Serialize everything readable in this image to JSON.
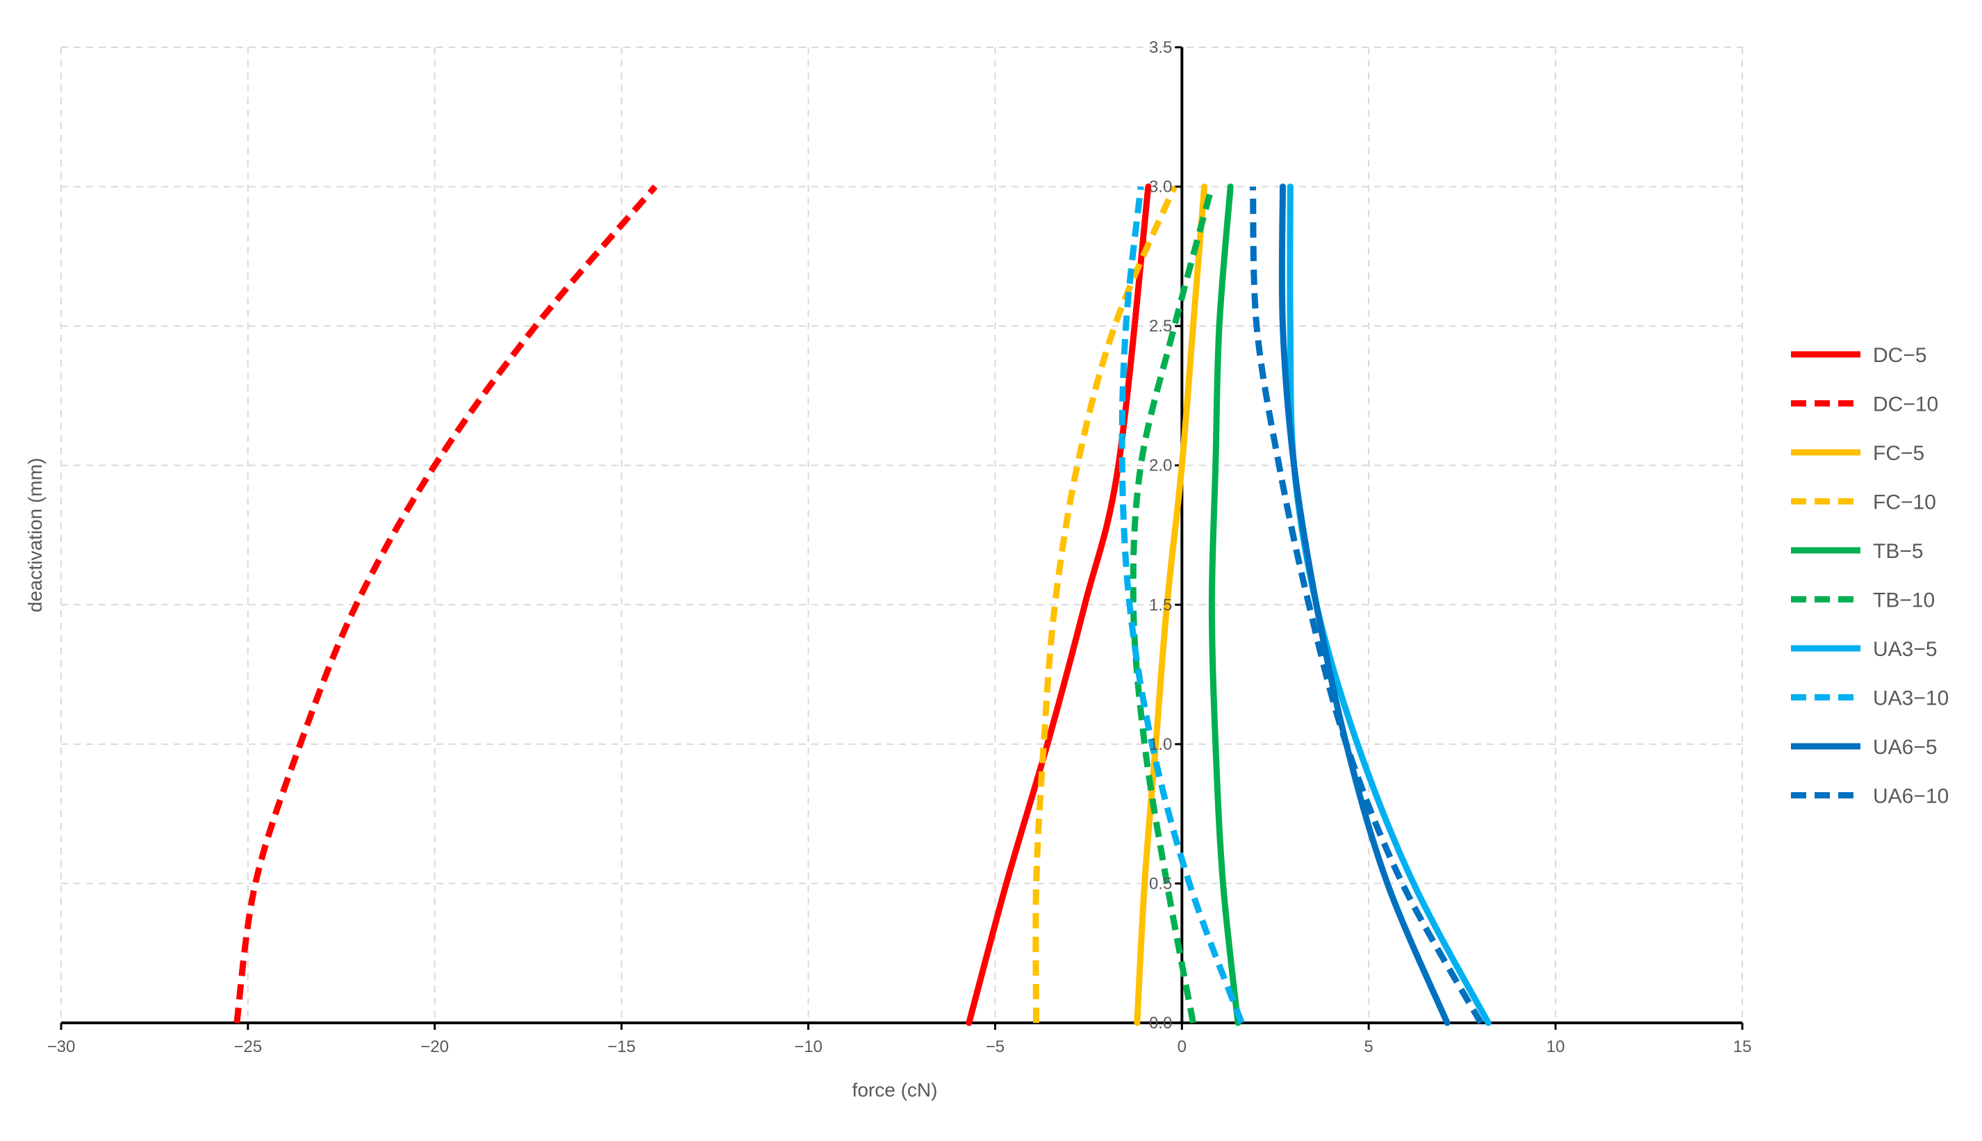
{
  "chart_data": {
    "type": "line",
    "xlabel": "force (cN)",
    "ylabel": "deactivation (mm)",
    "xlim": [
      -30,
      15
    ],
    "ylim": [
      0,
      3.5
    ],
    "x_ticks": [
      -30,
      -25,
      -20,
      -15,
      -10,
      -5,
      0,
      5,
      10,
      15
    ],
    "x_tick_labels": [
      "−30",
      "−25",
      "−20",
      "−15",
      "−10",
      "−5",
      "0",
      "5",
      "10",
      "15"
    ],
    "y_ticks": [
      0,
      0.5,
      1,
      1.5,
      2,
      2.5,
      3,
      3.5
    ],
    "y_tick_labels": [
      "0.0",
      "0.5",
      "1.0",
      "1.5",
      "2.0",
      "2.5",
      "3.0",
      "3.5"
    ],
    "grid": true,
    "legend_position": "right",
    "series": [
      {
        "name": "DC−5",
        "color": "#ff0000",
        "style": "solid",
        "x": [
          -5.7,
          -4.7,
          -3.6,
          -2.6,
          -1.7,
          -0.9
        ],
        "y": [
          0,
          0.5,
          1.0,
          1.5,
          2.0,
          3.0
        ]
      },
      {
        "name": "DC−10",
        "color": "#ff0000",
        "style": "dashed",
        "x": [
          -25.3,
          -24.8,
          -23.6,
          -22.1,
          -20.0,
          -17.3,
          -14.1
        ],
        "y": [
          0,
          0.5,
          1.0,
          1.5,
          2.0,
          2.5,
          3.0
        ]
      },
      {
        "name": "FC−5",
        "color": "#ffc000",
        "style": "solid",
        "x": [
          -1.2,
          -1.0,
          -0.7,
          -0.4,
          0.0,
          0.3,
          0.6
        ],
        "y": [
          0,
          0.5,
          1.0,
          1.5,
          2.0,
          2.5,
          3.0
        ]
      },
      {
        "name": "FC−10",
        "color": "#ffc000",
        "style": "dashed",
        "x": [
          -3.9,
          -3.9,
          -3.7,
          -3.4,
          -2.8,
          -1.8,
          -0.2
        ],
        "y": [
          0,
          0.5,
          1.0,
          1.5,
          2.0,
          2.5,
          3.0
        ]
      },
      {
        "name": "TB−5",
        "color": "#00b050",
        "style": "solid",
        "x": [
          1.5,
          1.1,
          0.9,
          0.8,
          0.9,
          1.0,
          1.3
        ],
        "y": [
          0,
          0.5,
          1.0,
          1.5,
          2.0,
          2.5,
          3.0
        ]
      },
      {
        "name": "TB−10",
        "color": "#00b050",
        "style": "dashed",
        "x": [
          0.3,
          -0.4,
          -1.0,
          -1.3,
          -1.1,
          -0.2,
          0.8
        ],
        "y": [
          0,
          0.5,
          1.0,
          1.5,
          2.0,
          2.5,
          3.0
        ]
      },
      {
        "name": "UA3−5",
        "color": "#00b0f0",
        "style": "solid",
        "x": [
          8.2,
          6.2,
          4.7,
          3.6,
          3.0,
          2.9,
          2.9
        ],
        "y": [
          0,
          0.5,
          1.0,
          1.5,
          2.0,
          2.5,
          3.0
        ]
      },
      {
        "name": "UA3−10",
        "color": "#00b0f0",
        "style": "dashed",
        "x": [
          1.6,
          0.2,
          -0.8,
          -1.4,
          -1.6,
          -1.5,
          -1.1
        ],
        "y": [
          0,
          0.5,
          1.0,
          1.5,
          2.0,
          2.5,
          3.0
        ]
      },
      {
        "name": "UA6−5",
        "color": "#0070c0",
        "style": "solid",
        "x": [
          7.1,
          5.5,
          4.4,
          3.6,
          3.0,
          2.7,
          2.7
        ],
        "y": [
          0,
          0.5,
          1.0,
          1.5,
          2.0,
          2.5,
          3.0
        ]
      },
      {
        "name": "UA6−10",
        "color": "#0070c0",
        "style": "dashed",
        "x": [
          8.0,
          5.9,
          4.4,
          3.4,
          2.6,
          2.0,
          1.9
        ],
        "y": [
          0,
          0.5,
          1.0,
          1.5,
          2.0,
          2.5,
          3.0
        ]
      }
    ]
  }
}
